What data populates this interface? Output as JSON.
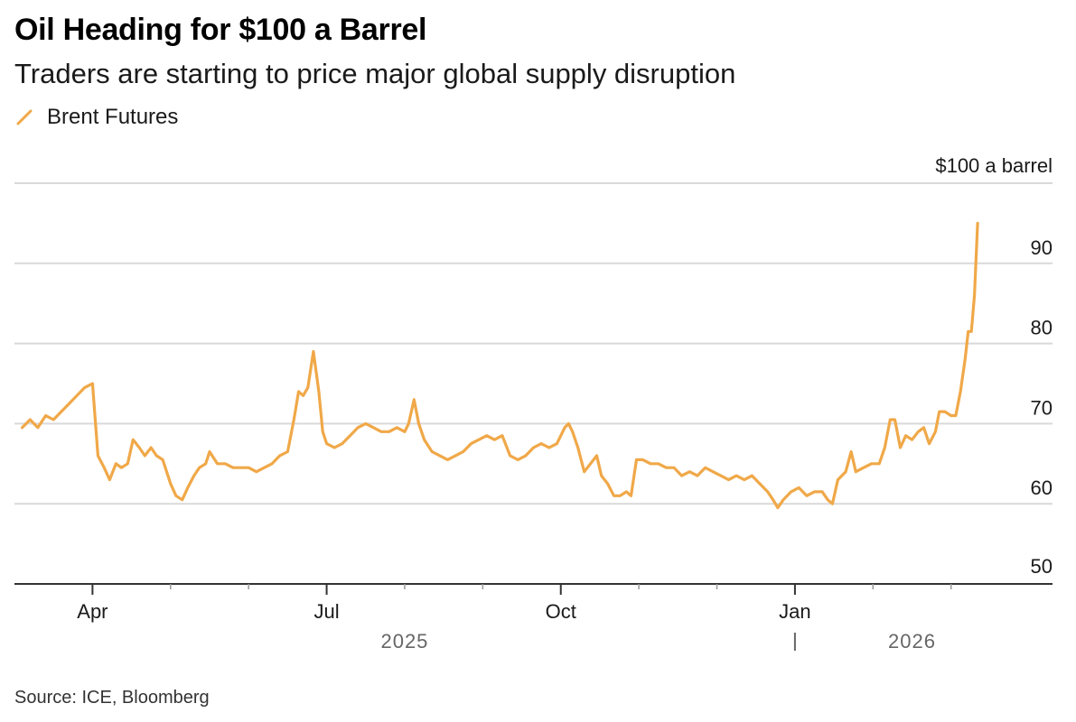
{
  "title": "Oil Heading for $100 a Barrel",
  "subtitle": "Traders are starting to price major global supply disruption",
  "source": "Source: ICE, Bloomberg",
  "colors": {
    "series": "#f0a848",
    "grid": "#d9d9d9",
    "axis": "#333333"
  },
  "chart_data": {
    "type": "line",
    "title": "Oil Heading for $100 a Barrel",
    "subtitle": "Traders are starting to price major global supply disruption",
    "ylabel": "$100 a barrel",
    "y_unit_label": "$100 a barrel",
    "ylim": [
      50,
      100
    ],
    "yticks": [
      50,
      60,
      70,
      80,
      90
    ],
    "xlim": [
      0,
      13.3
    ],
    "x_unit": "months since 2025-03-01",
    "xticks": [
      {
        "x": 1,
        "label": "Apr"
      },
      {
        "x": 4,
        "label": "Jul"
      },
      {
        "x": 7,
        "label": "Oct"
      },
      {
        "x": 10,
        "label": "Jan"
      }
    ],
    "x_minor_ticks": [
      2,
      3,
      5,
      6,
      8,
      9,
      11,
      12
    ],
    "year_labels": [
      {
        "x": 5,
        "label": "2025"
      },
      {
        "x": 11.5,
        "label": "2026"
      }
    ],
    "year_divider_x": 10,
    "series": [
      {
        "name": "Brent Futures",
        "points": [
          [
            0.1,
            69.5
          ],
          [
            0.2,
            70.5
          ],
          [
            0.3,
            69.5
          ],
          [
            0.4,
            71
          ],
          [
            0.5,
            70.5
          ],
          [
            0.6,
            71.5
          ],
          [
            0.7,
            72.5
          ],
          [
            0.8,
            73.5
          ],
          [
            0.9,
            74.5
          ],
          [
            1.0,
            75
          ],
          [
            1.07,
            66
          ],
          [
            1.15,
            64.5
          ],
          [
            1.22,
            63
          ],
          [
            1.3,
            65
          ],
          [
            1.37,
            64.5
          ],
          [
            1.45,
            65
          ],
          [
            1.52,
            68
          ],
          [
            1.6,
            67
          ],
          [
            1.67,
            66
          ],
          [
            1.75,
            67
          ],
          [
            1.82,
            66
          ],
          [
            1.9,
            65.5
          ],
          [
            2.0,
            62.5
          ],
          [
            2.07,
            61
          ],
          [
            2.15,
            60.5
          ],
          [
            2.22,
            62
          ],
          [
            2.3,
            63.5
          ],
          [
            2.37,
            64.5
          ],
          [
            2.45,
            65
          ],
          [
            2.5,
            66.5
          ],
          [
            2.6,
            65
          ],
          [
            2.7,
            65
          ],
          [
            2.8,
            64.5
          ],
          [
            2.9,
            64.5
          ],
          [
            3.0,
            64.5
          ],
          [
            3.1,
            64
          ],
          [
            3.2,
            64.5
          ],
          [
            3.3,
            65
          ],
          [
            3.4,
            66
          ],
          [
            3.5,
            66.5
          ],
          [
            3.58,
            70.5
          ],
          [
            3.64,
            74
          ],
          [
            3.7,
            73.5
          ],
          [
            3.76,
            74.5
          ],
          [
            3.83,
            79
          ],
          [
            3.9,
            74
          ],
          [
            3.95,
            69
          ],
          [
            4.0,
            67.5
          ],
          [
            4.1,
            67
          ],
          [
            4.2,
            67.5
          ],
          [
            4.3,
            68.5
          ],
          [
            4.4,
            69.5
          ],
          [
            4.5,
            70
          ],
          [
            4.6,
            69.5
          ],
          [
            4.7,
            69
          ],
          [
            4.8,
            69
          ],
          [
            4.9,
            69.5
          ],
          [
            5.0,
            69
          ],
          [
            5.05,
            70
          ],
          [
            5.12,
            73
          ],
          [
            5.18,
            70
          ],
          [
            5.25,
            68
          ],
          [
            5.35,
            66.5
          ],
          [
            5.45,
            66
          ],
          [
            5.55,
            65.5
          ],
          [
            5.65,
            66
          ],
          [
            5.75,
            66.5
          ],
          [
            5.85,
            67.5
          ],
          [
            5.95,
            68
          ],
          [
            6.05,
            68.5
          ],
          [
            6.15,
            68
          ],
          [
            6.25,
            68.5
          ],
          [
            6.35,
            66
          ],
          [
            6.45,
            65.5
          ],
          [
            6.55,
            66
          ],
          [
            6.65,
            67
          ],
          [
            6.75,
            67.5
          ],
          [
            6.85,
            67
          ],
          [
            6.95,
            67.5
          ],
          [
            7.05,
            69.5
          ],
          [
            7.1,
            70
          ],
          [
            7.15,
            69
          ],
          [
            7.22,
            67
          ],
          [
            7.3,
            64
          ],
          [
            7.38,
            65
          ],
          [
            7.46,
            66
          ],
          [
            7.52,
            63.5
          ],
          [
            7.6,
            62.5
          ],
          [
            7.68,
            61
          ],
          [
            7.76,
            61
          ],
          [
            7.84,
            61.5
          ],
          [
            7.9,
            61
          ],
          [
            7.97,
            65.5
          ],
          [
            8.05,
            65.5
          ],
          [
            8.15,
            65
          ],
          [
            8.25,
            65
          ],
          [
            8.35,
            64.5
          ],
          [
            8.45,
            64.5
          ],
          [
            8.55,
            63.5
          ],
          [
            8.65,
            64
          ],
          [
            8.75,
            63.5
          ],
          [
            8.85,
            64.5
          ],
          [
            8.95,
            64
          ],
          [
            9.05,
            63.5
          ],
          [
            9.15,
            63
          ],
          [
            9.25,
            63.5
          ],
          [
            9.35,
            63
          ],
          [
            9.45,
            63.5
          ],
          [
            9.55,
            62.5
          ],
          [
            9.65,
            61.5
          ],
          [
            9.72,
            60.5
          ],
          [
            9.78,
            59.5
          ],
          [
            9.85,
            60.5
          ],
          [
            9.95,
            61.5
          ],
          [
            10.05,
            62
          ],
          [
            10.15,
            61
          ],
          [
            10.25,
            61.5
          ],
          [
            10.35,
            61.5
          ],
          [
            10.42,
            60.5
          ],
          [
            10.48,
            60
          ],
          [
            10.55,
            63
          ],
          [
            10.65,
            64
          ],
          [
            10.72,
            66.5
          ],
          [
            10.78,
            64
          ],
          [
            10.88,
            64.5
          ],
          [
            10.98,
            65
          ],
          [
            11.08,
            65
          ],
          [
            11.15,
            67
          ],
          [
            11.22,
            70.5
          ],
          [
            11.28,
            70.5
          ],
          [
            11.35,
            67
          ],
          [
            11.42,
            68.5
          ],
          [
            11.5,
            68
          ],
          [
            11.58,
            69
          ],
          [
            11.65,
            69.5
          ],
          [
            11.72,
            67.5
          ],
          [
            11.8,
            69
          ],
          [
            11.85,
            71.5
          ],
          [
            11.92,
            71.5
          ],
          [
            12.0,
            71
          ],
          [
            12.06,
            71
          ],
          [
            12.12,
            74
          ],
          [
            12.18,
            78
          ],
          [
            12.22,
            81.5
          ],
          [
            12.26,
            81.5
          ],
          [
            12.3,
            86
          ],
          [
            12.34,
            95
          ]
        ]
      }
    ]
  }
}
